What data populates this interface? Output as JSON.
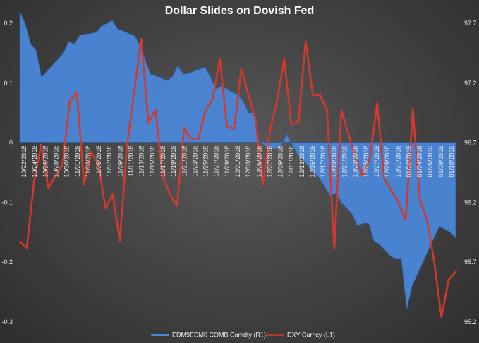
{
  "chart_data": {
    "type": "line",
    "title": "Dollar Slides on Dovish Fed",
    "colors": {
      "area": "#4a86d6",
      "area_edge": "#2c5a9a",
      "line": "#d23a2e",
      "background": "#454545",
      "text": "#ffffff"
    },
    "grid": false,
    "legend_position": "bottom",
    "left_axis": {
      "ylim": [
        -0.3,
        0.2
      ],
      "ticks": [
        "0.2",
        "0.1",
        "0",
        "-0.1",
        "-0.2",
        "-0.3"
      ],
      "tick_values": [
        0.2,
        0.1,
        0,
        -0.1,
        -0.2,
        -0.3
      ]
    },
    "right_axis": {
      "ylim": [
        95.2,
        97.7
      ],
      "ticks": [
        "97.7",
        "97.2",
        "96.7",
        "96.2",
        "95.7",
        "95.2"
      ],
      "tick_values": [
        97.7,
        97.2,
        96.7,
        96.2,
        95.7,
        95.2
      ]
    },
    "x_tick_labels": [
      "10/22/2018",
      "10/24/2018",
      "10/26/2018",
      "10/28/2018",
      "10/30/2018",
      "11/01/2018",
      "11/03/2018",
      "11/05/2018",
      "11/07/2018",
      "11/09/2018",
      "11/11/2018",
      "11/13/2018",
      "11/15/2018",
      "11/17/2018",
      "11/19/2018",
      "11/21/2018",
      "11/23/2018",
      "11/25/2018",
      "11/27/2018",
      "11/29/2018",
      "12/01/2018",
      "12/03/2018",
      "12/05/2018",
      "12/07/2018",
      "12/09/2018",
      "12/11/2018",
      "12/13/2018",
      "12/15/2018",
      "12/17/2018",
      "12/19/2018",
      "12/21/2018",
      "12/23/2018",
      "12/25/2018",
      "12/27/2018",
      "12/29/2018",
      "12/31/2018",
      "01/02/2019",
      "01/04/2019",
      "01/06/2019",
      "01/08/2019",
      "01/10/2019"
    ],
    "series": [
      {
        "name": "EDM9EDM0 COMB Comdty  (R1)",
        "kind": "area",
        "axis": "left",
        "values": [
          0.22,
          0.2,
          0.165,
          0.155,
          0.11,
          0.12,
          0.13,
          0.14,
          0.15,
          0.17,
          0.165,
          0.18,
          0.182,
          0.183,
          0.185,
          0.195,
          0.2,
          0.205,
          0.19,
          0.187,
          0.183,
          0.18,
          0.165,
          0.14,
          0.115,
          0.112,
          0.108,
          0.105,
          0.11,
          0.13,
          0.115,
          0.116,
          0.12,
          0.123,
          0.127,
          0.11,
          0.09,
          0.095,
          0.09,
          0.085,
          0.08,
          0.07,
          0.05,
          0.05,
          0.0,
          -0.005,
          -0.01,
          -0.01,
          -0.005,
          0.015,
          -0.005,
          -0.02,
          -0.03,
          -0.04,
          -0.05,
          -0.06,
          -0.075,
          -0.09,
          -0.085,
          -0.1,
          -0.11,
          -0.12,
          -0.14,
          -0.135,
          -0.135,
          -0.165,
          -0.17,
          -0.18,
          -0.19,
          -0.195,
          -0.195,
          -0.28,
          -0.24,
          -0.22,
          -0.2,
          -0.18,
          -0.16,
          -0.14,
          -0.145,
          -0.15,
          -0.16
        ]
      },
      {
        "name": "DXY Curncy  (L1)",
        "kind": "line",
        "axis": "right",
        "values": [
          95.87,
          95.82,
          96.38,
          96.68,
          96.32,
          96.42,
          96.52,
          97.05,
          97.12,
          96.35,
          96.62,
          96.52,
          96.15,
          96.27,
          95.88,
          96.67,
          97.12,
          97.57,
          96.87,
          96.97,
          96.42,
          96.27,
          96.17,
          96.82,
          96.73,
          96.73,
          96.97,
          97.07,
          97.4,
          96.83,
          96.82,
          97.32,
          97.1,
          96.9,
          96.35,
          96.8,
          97.05,
          97.4,
          96.85,
          96.88,
          97.55,
          97.1,
          97.1,
          96.97,
          95.81,
          96.97,
          96.77,
          96.57,
          96.42,
          96.57,
          97.03,
          96.4,
          96.3,
          96.2,
          96.05,
          96.98,
          96.22,
          96.05,
          95.7,
          95.24,
          95.55,
          95.62
        ]
      }
    ]
  }
}
